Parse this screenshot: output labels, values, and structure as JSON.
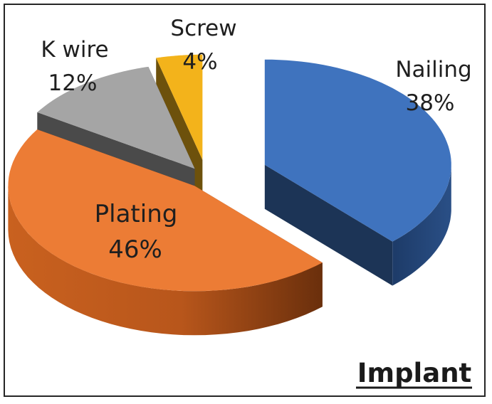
{
  "chart_data": {
    "type": "pie",
    "style": "3d-exploded",
    "title": "Implant",
    "legend": "none",
    "slices": [
      {
        "label": "Nailing",
        "value_label": "38%",
        "value": 38,
        "color": "#3f73be"
      },
      {
        "label": "Plating",
        "value_label": "46%",
        "value": 46,
        "color": "#ec7c35"
      },
      {
        "label": "K wire",
        "value_label": "12%",
        "value": 12,
        "color": "#a5a5a5"
      },
      {
        "label": "Screw",
        "value_label": "4%",
        "value": 4,
        "color": "#f3b31b"
      }
    ]
  }
}
